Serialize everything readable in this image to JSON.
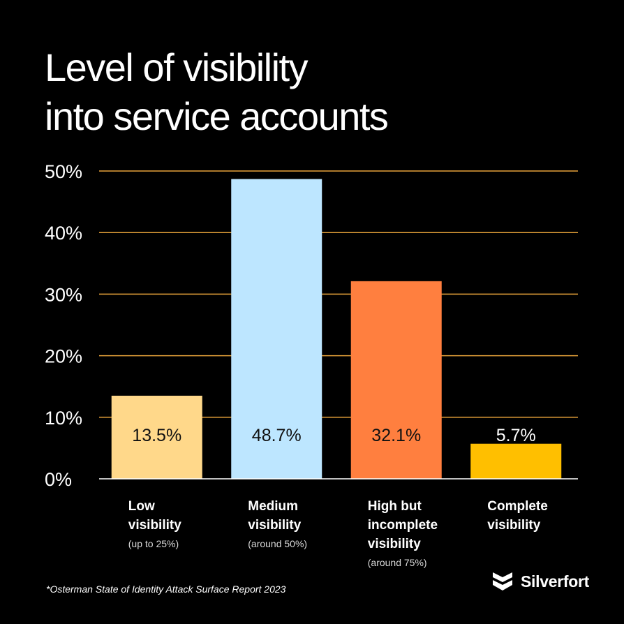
{
  "title_lines": [
    "Level of visibility",
    "into service accounts"
  ],
  "chart_data": {
    "type": "bar",
    "categories": [
      "Low visibility",
      "Medium visibility",
      "High but incomplete visibility",
      "Complete visibility"
    ],
    "category_lines": [
      "Low\nvisibility",
      "Medium\nvisibility",
      "High but\nincomplete\nvisibility",
      "Complete\nvisibility"
    ],
    "category_sublabels": [
      "(up to 25%)",
      "(around 50%)",
      "(around 75%)",
      ""
    ],
    "values": [
      13.5,
      48.7,
      32.1,
      5.7
    ],
    "data_labels": [
      "13.5%",
      "48.7%",
      "32.1%",
      "5.7%"
    ],
    "bar_colors": [
      "#FFD88A",
      "#BDE6FF",
      "#FF7F3F",
      "#FFBF00"
    ],
    "ylim": [
      0,
      50
    ],
    "yticks": [
      0,
      10,
      20,
      30,
      40,
      50
    ],
    "ytick_labels": [
      "0%",
      "10%",
      "20%",
      "30%",
      "40%",
      "50%"
    ],
    "grid": true,
    "grid_color": "#E8A33A",
    "xlabel": "",
    "ylabel": ""
  },
  "footnote": "*Osterman State of Identity Attack Surface Report 2023",
  "brand": {
    "name": "Silverfort",
    "logo_icon": "silverfort-shield-icon"
  }
}
